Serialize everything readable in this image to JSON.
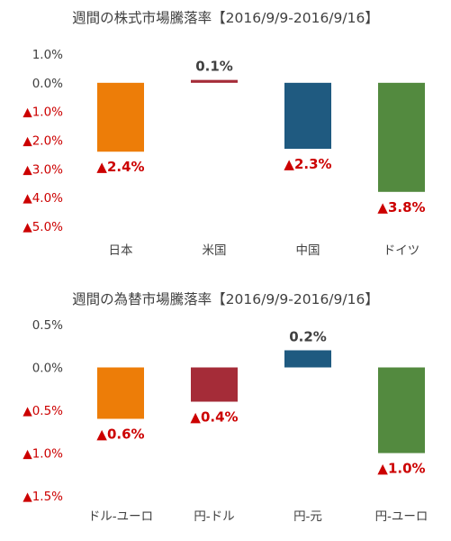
{
  "chart_data": [
    {
      "type": "bar",
      "title": "週間の株式市場騰落率【2016/9/9-2016/9/16】",
      "categories": [
        "日本",
        "米国",
        "中国",
        "ドイツ"
      ],
      "values": [
        -2.4,
        0.1,
        -2.3,
        -3.8
      ],
      "value_labels": [
        "▲2.4%",
        "0.1%",
        "▲2.3%",
        "▲3.8%"
      ],
      "bar_colors": [
        "#ED7D08",
        "#A52C38",
        "#1F5A80",
        "#538A3F"
      ],
      "ylim": [
        -5.0,
        1.0
      ],
      "yticks": [
        1.0,
        0.0,
        -1.0,
        -2.0,
        -3.0,
        -4.0,
        -5.0
      ],
      "ytick_labels": [
        "1.0%",
        "0.0%",
        "▲1.0%",
        "▲2.0%",
        "▲3.0%",
        "▲4.0%",
        "▲5.0%"
      ],
      "xlabel": "",
      "ylabel": "",
      "grid": false,
      "negative_label_color": "#CC0000",
      "positive_label_color": "#404040"
    },
    {
      "type": "bar",
      "title": "週間の為替市場騰落率【2016/9/9-2016/9/16】",
      "categories": [
        "ドル-ユーロ",
        "円-ドル",
        "円-元",
        "円-ユーロ"
      ],
      "values": [
        -0.6,
        -0.4,
        0.2,
        -1.0
      ],
      "value_labels": [
        "▲0.6%",
        "▲0.4%",
        "0.2%",
        "▲1.0%"
      ],
      "bar_colors": [
        "#ED7D08",
        "#A52C38",
        "#1F5A80",
        "#538A3F"
      ],
      "ylim": [
        -1.5,
        0.5
      ],
      "yticks": [
        0.5,
        0.0,
        -0.5,
        -1.0,
        -1.5
      ],
      "ytick_labels": [
        "0.5%",
        "0.0%",
        "▲0.5%",
        "▲1.0%",
        "▲1.5%"
      ],
      "xlabel": "",
      "ylabel": "",
      "grid": false,
      "negative_label_color": "#CC0000",
      "positive_label_color": "#404040"
    }
  ]
}
